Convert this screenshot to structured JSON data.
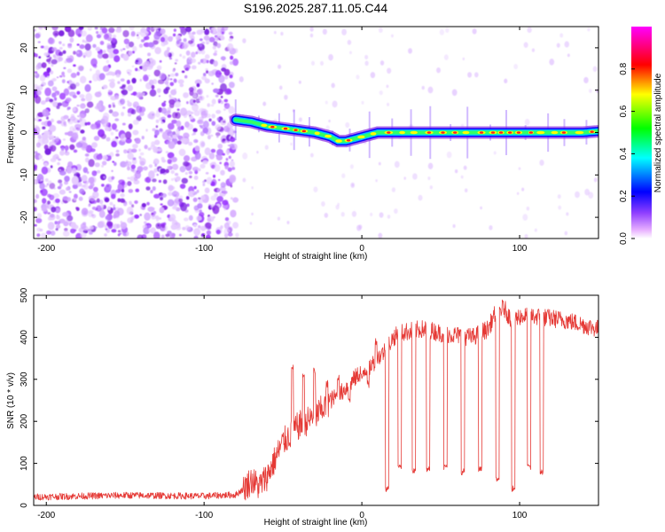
{
  "chart_data": [
    {
      "type": "heatmap",
      "title": "S196.2025.287.11.05.C44",
      "xlabel": "Height of straight line (km)",
      "ylabel": "Frequency (Hz)",
      "xlim": [
        -208,
        150
      ],
      "ylim": [
        -25,
        25
      ],
      "x_ticks": [
        -200,
        -100,
        0,
        100
      ],
      "y_ticks": [
        20,
        10,
        0,
        -10,
        -20
      ],
      "colorbar": {
        "label": "Normalized spectral amplitude",
        "range": [
          0.0,
          1.0
        ],
        "ticks": [
          0.0,
          0.2,
          0.4,
          0.6,
          0.8
        ],
        "colors": [
          "#ff00ff",
          "#0000ff",
          "#00ffff",
          "#00ff00",
          "#ffff00",
          "#ff0000",
          "#ff00ff"
        ]
      },
      "noise_region_x": [
        -208,
        -80
      ],
      "signal_track": {
        "x": [
          -80,
          -70,
          -60,
          -50,
          -40,
          -30,
          -20,
          -15,
          -10,
          -5,
          0,
          10,
          20,
          40,
          60,
          80,
          100,
          120,
          140,
          150
        ],
        "freq": [
          3,
          2.5,
          1.5,
          1,
          0.5,
          0,
          -1,
          -2,
          -2,
          -1.5,
          -1,
          0,
          0,
          0,
          0,
          0,
          0,
          0,
          0,
          0.3
        ]
      }
    },
    {
      "type": "line",
      "xlabel": "Height of straight line (km)",
      "ylabel": "SNR (10 * v/v)",
      "xlim": [
        -208,
        150
      ],
      "ylim": [
        0,
        500
      ],
      "x_ticks": [
        -200,
        -100,
        0,
        100
      ],
      "y_ticks": [
        0,
        100,
        200,
        300,
        400,
        500
      ],
      "series_color": "#e53935",
      "series": [
        {
          "name": "SNR",
          "x": [
            -208,
            -180,
            -150,
            -120,
            -100,
            -90,
            -80,
            -75,
            -70,
            -65,
            -60,
            -55,
            -50,
            -45,
            -40,
            -35,
            -30,
            -25,
            -20,
            -15,
            -10,
            -5,
            0,
            5,
            10,
            15,
            20,
            25,
            30,
            40,
            50,
            60,
            70,
            80,
            85,
            90,
            95,
            100,
            110,
            120,
            130,
            140,
            150
          ],
          "y": [
            20,
            22,
            24,
            23,
            22,
            24,
            25,
            40,
            60,
            45,
            70,
            110,
            150,
            170,
            190,
            200,
            210,
            230,
            250,
            260,
            280,
            300,
            320,
            330,
            350,
            370,
            400,
            410,
            415,
            420,
            410,
            405,
            400,
            420,
            460,
            470,
            440,
            450,
            450,
            445,
            440,
            430,
            420
          ]
        }
      ],
      "dropouts": {
        "x": [
          16,
          24,
          33,
          42,
          53,
          64,
          75,
          86,
          96,
          106,
          114
        ],
        "y": [
          40,
          90,
          80,
          85,
          90,
          80,
          85,
          60,
          40,
          90,
          80
        ]
      },
      "spikes": {
        "x": [
          -44,
          -37,
          -30,
          -22,
          -15,
          -8,
          0,
          4,
          9
        ],
        "y": [
          340,
          320,
          330,
          300,
          310,
          260,
          320,
          300,
          400
        ]
      }
    }
  ]
}
